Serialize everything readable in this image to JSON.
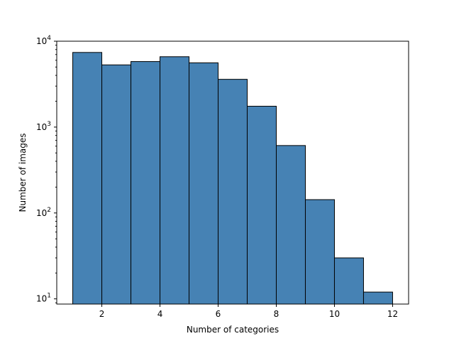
{
  "chart_data": {
    "type": "bar",
    "title": "",
    "xlabel": "Number of categories",
    "ylabel": "Number of images",
    "bar_color": "#4682b4",
    "edge_color": "#000000",
    "bins": [
      {
        "start": 1,
        "end": 2,
        "value": 7400
      },
      {
        "start": 2,
        "end": 3,
        "value": 5300
      },
      {
        "start": 3,
        "end": 4,
        "value": 5800
      },
      {
        "start": 4,
        "end": 5,
        "value": 6600
      },
      {
        "start": 5,
        "end": 6,
        "value": 5600
      },
      {
        "start": 6,
        "end": 7,
        "value": 3600
      },
      {
        "start": 7,
        "end": 8,
        "value": 1750
      },
      {
        "start": 8,
        "end": 9,
        "value": 610
      },
      {
        "start": 9,
        "end": 10,
        "value": 143
      },
      {
        "start": 10,
        "end": 11,
        "value": 30
      },
      {
        "start": 11,
        "end": 12,
        "value": 12
      }
    ],
    "xlim": [
      0.45,
      12.55
    ],
    "ylim": [
      8.7,
      10000
    ],
    "y_scale": "log",
    "x_ticks": [
      {
        "value": 2,
        "label": "2"
      },
      {
        "value": 4,
        "label": "4"
      },
      {
        "value": 6,
        "label": "6"
      },
      {
        "value": 8,
        "label": "8"
      },
      {
        "value": 10,
        "label": "10"
      },
      {
        "value": 12,
        "label": "12"
      }
    ],
    "y_ticks": [
      {
        "value": 10,
        "base": "10",
        "exp": "1"
      },
      {
        "value": 100,
        "base": "10",
        "exp": "2"
      },
      {
        "value": 1000,
        "base": "10",
        "exp": "3"
      },
      {
        "value": 10000,
        "base": "10",
        "exp": "4"
      }
    ],
    "grid": false,
    "legend": "none"
  }
}
